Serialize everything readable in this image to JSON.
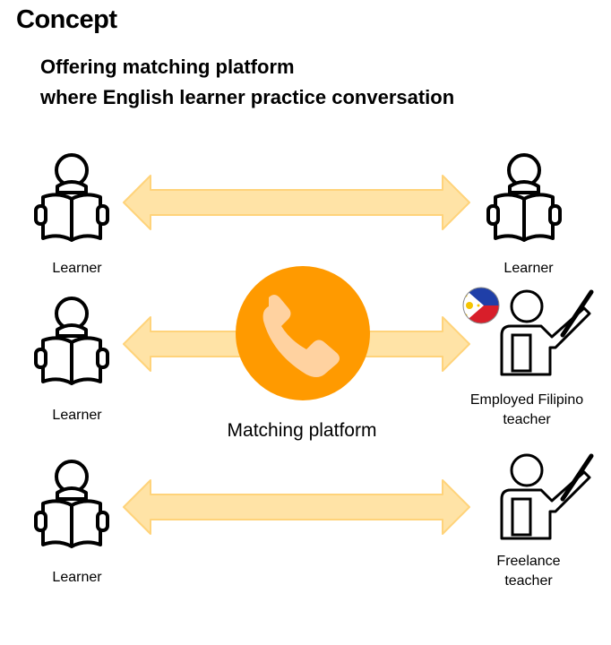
{
  "title": "Concept",
  "subtitle_line1": "Offering matching platform",
  "subtitle_line2": "where English learner practice conversation",
  "platform": {
    "label": "Matching platform"
  },
  "rows": [
    {
      "left_label": "Learner",
      "right_label_line1": "Learner",
      "right_label_line2": ""
    },
    {
      "left_label": "Learner",
      "right_label_line1": "Employed Filipino",
      "right_label_line2": "teacher"
    },
    {
      "left_label": "Learner",
      "right_label_line1": "Freelance",
      "right_label_line2": "teacher"
    }
  ],
  "colors": {
    "arrow_fill": "#FFE3A6",
    "arrow_stroke": "#FFD37A",
    "platform_circle": "#FF9A00",
    "phone_icon": "#FFD2A0",
    "flag_blue": "#1F3FA8",
    "flag_red": "#D81E2A",
    "flag_sun": "#F5C400"
  },
  "icons": [
    "learner-reading-icon",
    "teacher-pointing-icon",
    "phone-icon",
    "philippines-flag-icon"
  ]
}
